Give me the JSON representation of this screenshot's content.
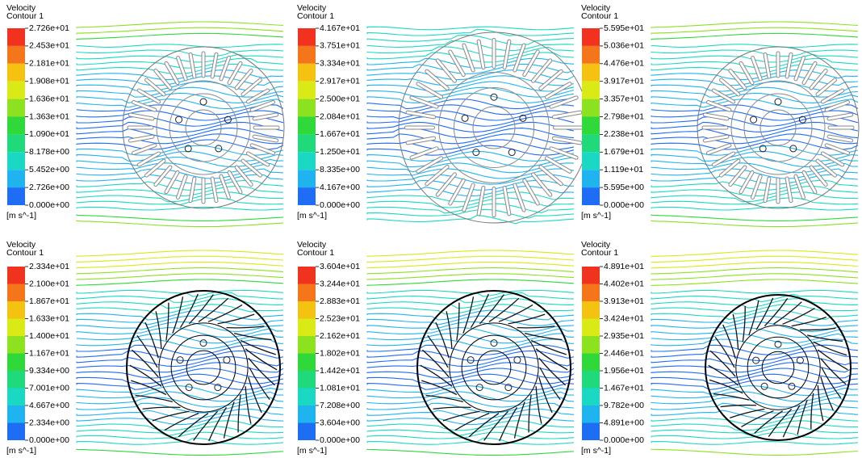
{
  "panels": [
    {
      "title": [
        "Velocity",
        "Contour 1"
      ],
      "ticks": [
        "2.726e+01",
        "2.453e+01",
        "2.181e+01",
        "1.908e+01",
        "1.636e+01",
        "1.363e+01",
        "1.090e+01",
        "8.178e+00",
        "5.452e+00",
        "2.726e+00",
        "0.000e+00"
      ],
      "unit": "[m s^-1]"
    },
    {
      "title": [
        "Velocity",
        "Contour 1"
      ],
      "ticks": [
        "4.167e+01",
        "3.751e+01",
        "3.334e+01",
        "2.917e+01",
        "2.500e+01",
        "2.084e+01",
        "1.667e+01",
        "1.250e+01",
        "8.335e+00",
        "4.167e+00",
        "0.000e+00"
      ],
      "unit": "[m s^-1]"
    },
    {
      "title": [
        "Velocity",
        "Contour 1"
      ],
      "ticks": [
        "5.595e+01",
        "5.036e+01",
        "4.476e+01",
        "3.917e+01",
        "3.357e+01",
        "2.798e+01",
        "2.238e+01",
        "1.679e+01",
        "1.119e+01",
        "5.595e+00",
        "0.000e+00"
      ],
      "unit": "[m s^-1]"
    },
    {
      "title": [
        "Velocity",
        "Contour 1"
      ],
      "ticks": [
        "2.334e+01",
        "2.100e+01",
        "1.867e+01",
        "1.633e+01",
        "1.400e+01",
        "1.167e+01",
        "9.334e+00",
        "7.001e+00",
        "4.667e+00",
        "2.334e+00",
        "0.000e+00"
      ],
      "unit": "[m s^-1]"
    },
    {
      "title": [
        "Velocity",
        "Contour 1"
      ],
      "ticks": [
        "3.604e+01",
        "3.244e+01",
        "2.883e+01",
        "2.523e+01",
        "2.162e+01",
        "1.802e+01",
        "1.442e+01",
        "1.081e+01",
        "7.208e+00",
        "3.604e+00",
        "0.000e+00"
      ],
      "unit": "[m s^-1]"
    },
    {
      "title": [
        "Velocity",
        "Contour 1"
      ],
      "ticks": [
        "4.891e+01",
        "4.402e+01",
        "3.913e+01",
        "3.424e+01",
        "2.935e+01",
        "2.446e+01",
        "1.956e+01",
        "1.467e+01",
        "9.782e+00",
        "4.891e+00",
        "0.000e+00"
      ],
      "unit": "[m s^-1]"
    }
  ]
}
